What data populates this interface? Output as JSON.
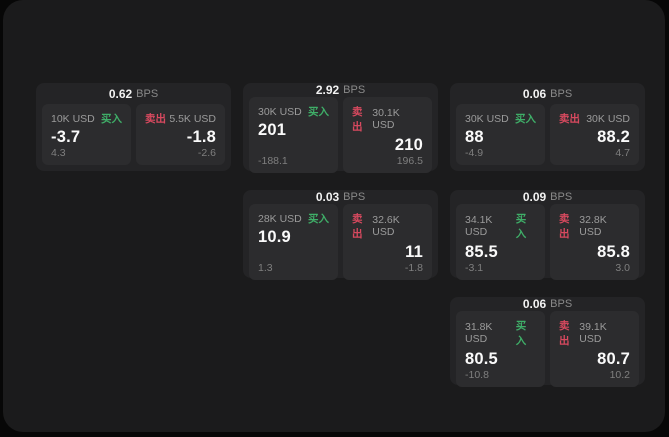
{
  "labels": {
    "unit": "BPS",
    "buy": "买入",
    "sell": "卖出"
  },
  "colors": {
    "buy": "#3fae68",
    "sell": "#d8495f",
    "surface": "#1b1b1c",
    "card": "#242426",
    "panel": "#2c2c2e"
  },
  "cards": [
    {
      "col": 1,
      "row": 1,
      "bps": "0.62",
      "buy": {
        "amount": "10K USD",
        "price": "-3.7",
        "delta": "4.3"
      },
      "sell": {
        "amount": "5.5K USD",
        "price": "-1.8",
        "delta": "-2.6"
      }
    },
    {
      "col": 2,
      "row": 1,
      "bps": "2.92",
      "buy": {
        "amount": "30K USD",
        "price": "201",
        "delta": "-188.1"
      },
      "sell": {
        "amount": "30.1K USD",
        "price": "210",
        "delta": "196.5"
      }
    },
    {
      "col": 3,
      "row": 1,
      "bps": "0.06",
      "buy": {
        "amount": "30K USD",
        "price": "88",
        "delta": "-4.9"
      },
      "sell": {
        "amount": "30K USD",
        "price": "88.2",
        "delta": "4.7"
      }
    },
    {
      "col": 2,
      "row": 2,
      "bps": "0.03",
      "buy": {
        "amount": "28K USD",
        "price": "10.9",
        "delta": "1.3"
      },
      "sell": {
        "amount": "32.6K USD",
        "price": "11",
        "delta": "-1.8"
      }
    },
    {
      "col": 3,
      "row": 2,
      "bps": "0.09",
      "buy": {
        "amount": "34.1K USD",
        "price": "85.5",
        "delta": "-3.1"
      },
      "sell": {
        "amount": "32.8K USD",
        "price": "85.8",
        "delta": "3.0"
      }
    },
    {
      "col": 3,
      "row": 3,
      "bps": "0.06",
      "buy": {
        "amount": "31.8K USD",
        "price": "80.5",
        "delta": "-10.8"
      },
      "sell": {
        "amount": "39.1K USD",
        "price": "80.7",
        "delta": "10.2"
      }
    }
  ]
}
